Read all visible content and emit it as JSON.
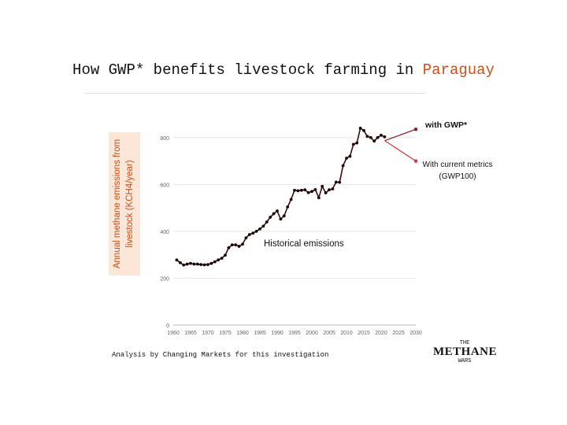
{
  "header": {
    "title_prefix": "How GWP* benefits livestock farming in ",
    "title_country": "Paraguay"
  },
  "footer": {
    "source": "Analysis by Changing Markets for this investigation"
  },
  "logo": {
    "top": "THE",
    "main": "METHANE",
    "bottom": "WARS"
  },
  "chart_data": {
    "type": "line",
    "title": "How GWP* benefits livestock farming in Paraguay",
    "ylabel": "Annual methane emissions from livestock (KCH4/year)",
    "xlim": [
      1960,
      2030
    ],
    "ylim": [
      0,
      900
    ],
    "x_ticks": [
      1960,
      1965,
      1970,
      1975,
      1980,
      1985,
      1990,
      1995,
      2000,
      2005,
      2010,
      2015,
      2020,
      2025,
      2030
    ],
    "y_ticks": [
      0,
      200,
      400,
      600,
      800
    ],
    "grid": true,
    "series": [
      {
        "name": "Historical emissions",
        "color": "#3d0b0b",
        "x": [
          1961,
          1962,
          1963,
          1964,
          1965,
          1966,
          1967,
          1968,
          1969,
          1970,
          1971,
          1972,
          1973,
          1974,
          1975,
          1976,
          1977,
          1978,
          1979,
          1980,
          1981,
          1982,
          1983,
          1984,
          1985,
          1986,
          1987,
          1988,
          1989,
          1990,
          1991,
          1992,
          1993,
          1994,
          1995,
          1996,
          1997,
          1998,
          1999,
          2000,
          2001,
          2002,
          2003,
          2004,
          2005,
          2006,
          2007,
          2008,
          2009,
          2010,
          2011,
          2012,
          2013,
          2014,
          2015,
          2016,
          2017,
          2018,
          2019,
          2020,
          2021
        ],
        "y": [
          278,
          266,
          256,
          260,
          263,
          260,
          260,
          258,
          257,
          258,
          263,
          270,
          278,
          285,
          298,
          330,
          342,
          342,
          336,
          345,
          372,
          386,
          392,
          400,
          410,
          422,
          440,
          460,
          475,
          487,
          452,
          466,
          504,
          536,
          575,
          573,
          575,
          577,
          565,
          570,
          578,
          543,
          592,
          564,
          577,
          581,
          610,
          609,
          680,
          712,
          720,
          771,
          777,
          840,
          830,
          805,
          800,
          785,
          800,
          810,
          803
        ]
      },
      {
        "name": "with GWP*",
        "color": "#8b1a1a",
        "x": [
          2021,
          2030
        ],
        "y": [
          787,
          835
        ]
      },
      {
        "name": "With current metrics (GWP100)",
        "color": "#d4383a",
        "x": [
          2021,
          2030
        ],
        "y": [
          787,
          700
        ]
      }
    ],
    "annotations": {
      "historical": "Historical emissions",
      "gwp_star": "with GWP*",
      "current_line1": "With current metrics",
      "current_line2": "(GWP100)"
    },
    "colors": {
      "title_accent": "#c8501a",
      "ylabel_text": "#c8501a",
      "ylabel_box": "#fbe6d8"
    }
  }
}
